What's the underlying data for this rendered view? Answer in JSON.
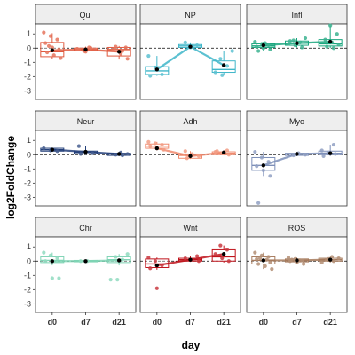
{
  "chart_data": {
    "type": "box",
    "xlabel": "day",
    "ylabel": "log2FoldChange",
    "x_categories": [
      "d0",
      "d7",
      "d21"
    ],
    "ylim": [
      -3.6,
      1.7
    ],
    "yticks": [
      1,
      0,
      -1,
      -2,
      -3
    ],
    "reference_line_y": 0,
    "layout": "3x3 facet grid",
    "panels": [
      {
        "name": "Qui",
        "color": "#e05a3f",
        "boxes": [
          {
            "day": "d0",
            "q1": -0.6,
            "median": -0.25,
            "q3": 0.4,
            "whisker_low": -0.75,
            "whisker_high": 1.05
          },
          {
            "day": "d7",
            "q1": -0.2,
            "median": -0.1,
            "q3": 0.0,
            "whisker_low": -0.3,
            "whisker_high": 0.1
          },
          {
            "day": "d21",
            "q1": -0.55,
            "median": -0.1,
            "q3": 0.05,
            "whisker_low": -0.8,
            "whisker_high": 0.15
          }
        ],
        "means": [
          -0.15,
          -0.1,
          -0.25
        ],
        "points": [
          [
            0,
            1.1
          ],
          [
            0,
            0.85
          ],
          [
            0,
            0.6
          ],
          [
            0,
            0.35
          ],
          [
            0,
            0.05
          ],
          [
            0,
            -0.1
          ],
          [
            0,
            -0.3
          ],
          [
            0,
            -0.5
          ],
          [
            0,
            -0.7
          ],
          [
            0,
            0.15
          ],
          [
            1,
            0.05
          ],
          [
            1,
            -0.05
          ],
          [
            1,
            -0.2
          ],
          [
            1,
            0.0
          ],
          [
            1,
            -0.1
          ],
          [
            1,
            -0.25
          ],
          [
            2,
            0.05
          ],
          [
            2,
            -0.05
          ],
          [
            2,
            -0.4
          ],
          [
            2,
            -0.75
          ],
          [
            2,
            0.1
          ],
          [
            2,
            -0.2
          ]
        ]
      },
      {
        "name": "NP",
        "color": "#3fb6c9",
        "boxes": [
          {
            "day": "d0",
            "q1": -1.85,
            "median": -1.6,
            "q3": -1.3,
            "whisker_low": -1.95,
            "whisker_high": -0.55
          },
          {
            "day": "d7",
            "q1": 0.05,
            "median": 0.15,
            "q3": 0.25,
            "whisker_low": 0.0,
            "whisker_high": 0.4
          },
          {
            "day": "d21",
            "q1": -1.7,
            "median": -1.5,
            "q3": -0.9,
            "whisker_low": -1.9,
            "whisker_high": -0.2
          }
        ],
        "means": [
          -1.5,
          0.1,
          -1.2
        ],
        "points": [
          [
            0,
            -0.55
          ],
          [
            0,
            -1.35
          ],
          [
            0,
            -1.85
          ],
          [
            0,
            -1.95
          ],
          [
            1,
            0.05
          ],
          [
            1,
            0.2
          ],
          [
            1,
            0.4
          ],
          [
            1,
            0.1
          ],
          [
            2,
            -0.2
          ],
          [
            2,
            -0.75
          ],
          [
            2,
            -1.25
          ],
          [
            2,
            -1.7
          ],
          [
            2,
            -1.9
          ]
        ]
      },
      {
        "name": "Infl",
        "color": "#1aa67e",
        "boxes": [
          {
            "day": "d0",
            "q1": 0.05,
            "median": 0.15,
            "q3": 0.3,
            "whisker_low": -0.2,
            "whisker_high": 0.45
          },
          {
            "day": "d7",
            "q1": 0.2,
            "median": 0.35,
            "q3": 0.5,
            "whisker_low": 0.05,
            "whisker_high": 0.7
          },
          {
            "day": "d21",
            "q1": 0.15,
            "median": 0.3,
            "q3": 0.6,
            "whisker_low": 0.0,
            "whisker_high": 1.6
          }
        ],
        "means": [
          0.2,
          0.35,
          0.45
        ],
        "points": [
          [
            0,
            0.45
          ],
          [
            0,
            0.3
          ],
          [
            0,
            0.2
          ],
          [
            0,
            0.1
          ],
          [
            0,
            0.0
          ],
          [
            0,
            -0.1
          ],
          [
            0,
            -0.2
          ],
          [
            0,
            0.35
          ],
          [
            1,
            0.7
          ],
          [
            1,
            0.55
          ],
          [
            1,
            0.4
          ],
          [
            1,
            0.3
          ],
          [
            1,
            0.2
          ],
          [
            1,
            0.05
          ],
          [
            1,
            0.5
          ],
          [
            2,
            1.6
          ],
          [
            2,
            1.0
          ],
          [
            2,
            0.6
          ],
          [
            2,
            0.4
          ],
          [
            2,
            0.25
          ],
          [
            2,
            0.1
          ],
          [
            2,
            0.0
          ]
        ]
      },
      {
        "name": "Neur",
        "color": "#24407a",
        "boxes": [
          {
            "day": "d0",
            "q1": 0.25,
            "median": 0.35,
            "q3": 0.45,
            "whisker_low": 0.2,
            "whisker_high": 0.5
          },
          {
            "day": "d7",
            "q1": 0.05,
            "median": 0.15,
            "q3": 0.25,
            "whisker_low": 0.0,
            "whisker_high": 0.6
          },
          {
            "day": "d21",
            "q1": -0.05,
            "median": 0.05,
            "q3": 0.1,
            "whisker_low": -0.1,
            "whisker_high": 0.15
          }
        ],
        "means": [
          0.35,
          0.2,
          0.05
        ],
        "points": [
          [
            0,
            0.45
          ],
          [
            0,
            0.3
          ],
          [
            0,
            0.25
          ],
          [
            1,
            0.6
          ],
          [
            1,
            0.2
          ],
          [
            1,
            0.1
          ],
          [
            1,
            0.05
          ],
          [
            2,
            0.15
          ],
          [
            2,
            0.05
          ],
          [
            2,
            0.0
          ],
          [
            2,
            -0.05
          ]
        ]
      },
      {
        "name": "Adh",
        "color": "#f08a6e",
        "boxes": [
          {
            "day": "d0",
            "q1": 0.45,
            "median": 0.6,
            "q3": 0.75,
            "whisker_low": 0.3,
            "whisker_high": 0.9
          },
          {
            "day": "d7",
            "q1": -0.25,
            "median": -0.05,
            "q3": 0.05,
            "whisker_low": -0.3,
            "whisker_high": 0.25
          },
          {
            "day": "d21",
            "q1": 0.0,
            "median": 0.1,
            "q3": 0.2,
            "whisker_low": -0.05,
            "whisker_high": 0.3
          }
        ],
        "means": [
          0.45,
          -0.1,
          0.15
        ],
        "points": [
          [
            0,
            0.9
          ],
          [
            0,
            0.8
          ],
          [
            0,
            0.7
          ],
          [
            0,
            0.6
          ],
          [
            0,
            0.5
          ],
          [
            0,
            0.35
          ],
          [
            1,
            0.25
          ],
          [
            1,
            0.05
          ],
          [
            1,
            -0.1
          ],
          [
            1,
            -0.25
          ],
          [
            2,
            0.3
          ],
          [
            2,
            0.2
          ],
          [
            2,
            0.1
          ],
          [
            2,
            0.0
          ],
          [
            2,
            0.25
          ]
        ]
      },
      {
        "name": "Myo",
        "color": "#7d8fb8",
        "boxes": [
          {
            "day": "d0",
            "q1": -1.1,
            "median": -0.75,
            "q3": -0.2,
            "whisker_low": -1.5,
            "whisker_high": 0.2
          },
          {
            "day": "d7",
            "q1": -0.05,
            "median": 0.05,
            "q3": 0.1,
            "whisker_low": -0.1,
            "whisker_high": 0.15
          },
          {
            "day": "d21",
            "q1": 0.0,
            "median": 0.1,
            "q3": 0.25,
            "whisker_low": -0.1,
            "whisker_high": 0.7
          }
        ],
        "means": [
          -0.75,
          0.05,
          0.1
        ],
        "points": [
          [
            0,
            0.2
          ],
          [
            0,
            -0.2
          ],
          [
            0,
            -0.5
          ],
          [
            0,
            -0.8
          ],
          [
            0,
            -1.1
          ],
          [
            0,
            -1.5
          ],
          [
            0,
            -3.4
          ],
          [
            1,
            0.1
          ],
          [
            1,
            0.0
          ],
          [
            1,
            -0.05
          ],
          [
            2,
            0.7
          ],
          [
            2,
            0.3
          ],
          [
            2,
            0.15
          ],
          [
            2,
            0.05
          ],
          [
            2,
            -0.1
          ]
        ]
      },
      {
        "name": "Chr",
        "color": "#7ed3b4",
        "boxes": [
          {
            "day": "d0",
            "q1": -0.1,
            "median": 0.05,
            "q3": 0.3,
            "whisker_low": -0.3,
            "whisker_high": 0.6
          },
          {
            "day": "d7",
            "q1": -0.05,
            "median": 0.0,
            "q3": 0.05,
            "whisker_low": -0.05,
            "whisker_high": 0.05
          },
          {
            "day": "d21",
            "q1": -0.1,
            "median": 0.1,
            "q3": 0.3,
            "whisker_low": -0.3,
            "whisker_high": 0.5
          }
        ],
        "means": [
          0.0,
          0.0,
          0.05
        ],
        "points": [
          [
            0,
            0.6
          ],
          [
            0,
            0.4
          ],
          [
            0,
            0.2
          ],
          [
            0,
            0.0
          ],
          [
            0,
            -1.2
          ],
          [
            0,
            -1.2
          ],
          [
            1,
            0.0
          ],
          [
            1,
            0.0
          ],
          [
            2,
            0.5
          ],
          [
            2,
            0.3
          ],
          [
            2,
            0.1
          ],
          [
            2,
            -1.3
          ],
          [
            2,
            -1.3
          ]
        ]
      },
      {
        "name": "Wnt",
        "color": "#c0141c",
        "boxes": [
          {
            "day": "d0",
            "q1": -0.45,
            "median": -0.2,
            "q3": 0.15,
            "whisker_low": -0.6,
            "whisker_high": 0.25
          },
          {
            "day": "d7",
            "q1": 0.0,
            "median": 0.1,
            "q3": 0.2,
            "whisker_low": -0.05,
            "whisker_high": 0.35
          },
          {
            "day": "d21",
            "q1": 0.0,
            "median": 0.3,
            "q3": 0.8,
            "whisker_low": -0.1,
            "whisker_high": 1.1
          }
        ],
        "means": [
          -0.3,
          0.1,
          0.5
        ],
        "points": [
          [
            0,
            0.25
          ],
          [
            0,
            0.0
          ],
          [
            0,
            -0.3
          ],
          [
            0,
            -0.5
          ],
          [
            0,
            -1.9
          ],
          [
            1,
            0.35
          ],
          [
            1,
            0.2
          ],
          [
            1,
            0.1
          ],
          [
            1,
            0.0
          ],
          [
            2,
            1.1
          ],
          [
            2,
            0.8
          ],
          [
            2,
            0.5
          ],
          [
            2,
            0.2
          ],
          [
            2,
            0.0
          ]
        ]
      },
      {
        "name": "ROS",
        "color": "#a67a5c",
        "boxes": [
          {
            "day": "d0",
            "q1": -0.2,
            "median": 0.05,
            "q3": 0.3,
            "whisker_low": -0.55,
            "whisker_high": 0.6
          },
          {
            "day": "d7",
            "q1": -0.05,
            "median": 0.05,
            "q3": 0.15,
            "whisker_low": -0.2,
            "whisker_high": 0.25
          },
          {
            "day": "d21",
            "q1": 0.0,
            "median": 0.1,
            "q3": 0.2,
            "whisker_low": -0.1,
            "whisker_high": 0.3
          }
        ],
        "means": [
          0.05,
          0.05,
          0.1
        ],
        "points": [
          [
            0,
            0.6
          ],
          [
            0,
            0.4
          ],
          [
            0,
            0.3
          ],
          [
            0,
            0.15
          ],
          [
            0,
            0.05
          ],
          [
            0,
            -0.1
          ],
          [
            0,
            -0.2
          ],
          [
            0,
            -0.35
          ],
          [
            0,
            -0.55
          ],
          [
            0,
            0.2
          ],
          [
            0,
            0.1
          ],
          [
            1,
            0.25
          ],
          [
            1,
            0.15
          ],
          [
            1,
            0.05
          ],
          [
            1,
            0.0
          ],
          [
            1,
            -0.1
          ],
          [
            1,
            -0.2
          ],
          [
            1,
            0.1
          ],
          [
            2,
            0.3
          ],
          [
            2,
            0.2
          ],
          [
            2,
            0.1
          ],
          [
            2,
            0.0
          ],
          [
            2,
            -0.1
          ],
          [
            2,
            0.15
          ]
        ]
      }
    ]
  }
}
